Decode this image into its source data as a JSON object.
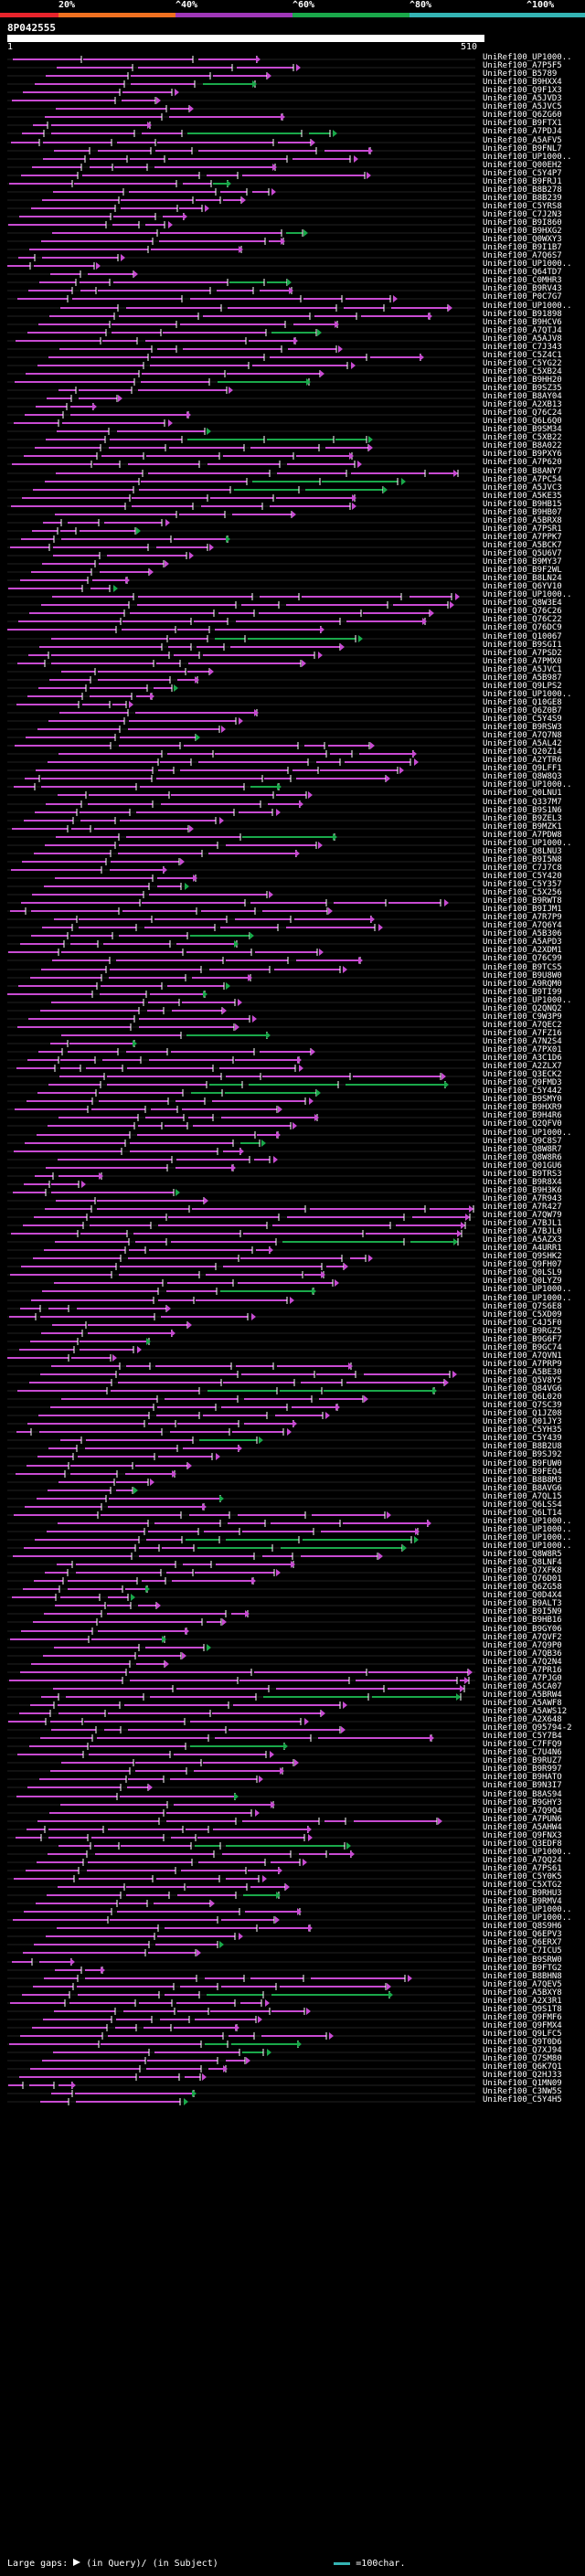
{
  "score_scale": {
    "labels": [
      "20%",
      "^40%",
      "^60%",
      "^80%",
      "^100%"
    ],
    "colors": [
      "#e8242c",
      "#f07020",
      "#9f37b8",
      "#1aa84a",
      "#34b4b4"
    ]
  },
  "query": {
    "id": "8P042555",
    "start": "1",
    "end": "510"
  },
  "hits": [
    "UniRef100_UP1000..",
    "UniRef100_A7P5F5",
    "UniRef100_B5789",
    "UniRef100_B9HXX4",
    "UniRef100_Q9F1X3",
    "UniRef100_A5JVD3",
    "UniRef100_A5JVC5",
    "UniRef100_Q6ZG60",
    "UniRef100_B9FTX1",
    "UniRef100_A7PDJ4",
    "UniRef100_A5AFV5",
    "UniRef100_B9FNL7",
    "UniRef100_UP1000..",
    "UniRef100_Q00EH2",
    "UniRef100_C5Y4P7",
    "UniRef100_B9FRJ1",
    "UniRef100_B8B278",
    "UniRef100_B8B239",
    "UniRef100_C5YRS8",
    "UniRef100_C7J2N3",
    "UniRef100_B9I860",
    "UniRef100_B9HXG2",
    "UniRef100_Q0WXY3",
    "UniRef100_B9I1B7",
    "UniRef100_A7Q6S7",
    "UniRef100_UP1000..",
    "UniRef100_Q64TD7",
    "UniRef100_C0MHR3",
    "UniRef100_B9RV43",
    "UniRef100_P0C7G7",
    "UniRef100_UP1000..",
    "UniRef100_B91898",
    "UniRef100_B9HCV6",
    "UniRef100_A7QTJ4",
    "UniRef100_A5AJV8",
    "UniRef100_C7J343",
    "UniRef100_C5Z4C1",
    "UniRef100_C5YG22",
    "UniRef100_C5XB24",
    "UniRef100_B9HH20",
    "UniRef100_B9SZ35",
    "UniRef100_B8AY04",
    "UniRef100_A2XB13",
    "UniRef100_Q76C24",
    "UniRef100_Q6L6Q0",
    "UniRef100_B9SM34",
    "UniRef100_C5XB22",
    "UniRef100_B8A022",
    "UniRef100_B9PXY6",
    "UniRef100_A7P620",
    "UniRef100_B8ANY7",
    "UniRef100_A7PC54",
    "UniRef100_A5JVC3",
    "UniRef100_A5KE35",
    "UniRef100_B9HB15",
    "UniRef100_B9HB07",
    "UniRef100_A5BRX8",
    "UniRef100_A7PSR1",
    "UniRef100_A7PPK7",
    "UniRef100_A5BCK7",
    "UniRef100_Q5U6V7",
    "UniRef100_B9MY37",
    "UniRef100_B9F2WL",
    "UniRef100_B8LN24",
    "UniRef100_Q6YV10",
    "UniRef100_UP1000..",
    "UniRef100_Q8W3E4",
    "UniRef100_Q76C26",
    "UniRef100_Q76C22",
    "UniRef100_Q76DC9",
    "UniRef100_Q10067",
    "UniRef100_B9SGI1",
    "UniRef100_A7PSD2",
    "UniRef100_A7PMX0",
    "UniRef100_A5JVC1",
    "UniRef100_A5B987",
    "UniRef100_Q9LPS2",
    "UniRef100_UP1000..",
    "UniRef100_Q10GE8",
    "UniRef100_Q6Z0B7",
    "UniRef100_C5Y4S9",
    "UniRef100_B9RSW3",
    "UniRef100_A7Q7N8",
    "UniRef100_A5AL42",
    "UniRef100_Q20Z14",
    "UniRef100_A2YTR6",
    "UniRef100_Q9LFF1",
    "UniRef100_Q8W8Q3",
    "UniRef100_UP1000..",
    "UniRef100_Q0LNU1",
    "UniRef100_Q337M7",
    "UniRef100_B9S1N6",
    "UniRef100_B9ZEL3",
    "UniRef100_B9MZK1",
    "UniRef100_A7PDW8",
    "UniRef100_UP1000..",
    "UniRef100_Q8LNU3",
    "UniRef100_B9I5N8",
    "UniRef100_C7J7C8",
    "UniRef100_C5Y420",
    "UniRef100_C5Y357",
    "UniRef100_C5X256",
    "UniRef100_B9RWT8",
    "UniRef100_B9IJM1",
    "UniRef100_A7R7P9",
    "UniRef100_A7Q6Y4",
    "UniRef100_A5B306",
    "UniRef100_A5APD3",
    "UniRef100_A2XDM1",
    "UniRef100_Q76C99",
    "UniRef100_B9TCS5",
    "UniRef100_B9U8W0",
    "UniRef100_A9RQM0",
    "UniRef100_B9TI99",
    "UniRef100_UP1000..",
    "UniRef100_Q2QNQ2",
    "UniRef100_C9W3P9",
    "UniRef100_A7QEC2",
    "UniRef100_A7FZ16",
    "UniRef100_A7N2S4",
    "UniRef100_A7PX01",
    "UniRef100_A3C1D6",
    "UniRef100_A2ZLX7",
    "UniRef100_Q3ECK2",
    "UniRef100_Q9FMD3",
    "UniRef100_C5Y442",
    "UniRef100_B9SMY0",
    "UniRef100_B9HXR9",
    "UniRef100_B9H4R6",
    "UniRef100_Q2QFV0",
    "UniRef100_UP1000..",
    "UniRef100_Q9C8S7",
    "UniRef100_Q8W8R7",
    "UniRef100_Q8W8R6",
    "UniRef100_Q01GU6",
    "UniRef100_B9TRS3",
    "UniRef100_B9R8X4",
    "UniRef100_B9H3K6",
    "UniRef100_A7R943",
    "UniRef100_A7R427",
    "UniRef100_A7QW79",
    "UniRef100_A7BJL1",
    "UniRef100_A7BJL0",
    "UniRef100_A5AZX3",
    "UniRef100_A4URR1",
    "UniRef100_Q9SHK2",
    "UniRef100_Q9FH07",
    "UniRef100_Q0LSL9",
    "UniRef100_Q0LYZ9",
    "UniRef100_UP1000..",
    "UniRef100_UP1000..",
    "UniRef100_Q7S6E8",
    "UniRef100_C5XD09",
    "UniRef100_C4J5F0",
    "UniRef100_B9RGZ5",
    "UniRef100_B9G6F7",
    "UniRef100_B9GC74",
    "UniRef100_A7QVN1",
    "UniRef100_A7PRP9",
    "UniRef100_A5BE30",
    "UniRef100_Q5V8Y5",
    "UniRef100_Q84VG6",
    "UniRef100_Q6L020",
    "UniRef100_Q7SC39",
    "UniRef100_Q1JZ08",
    "UniRef100_Q01JY3",
    "UniRef100_C5YH35",
    "UniRef100_C5Y439",
    "UniRef100_B8B2U8",
    "UniRef100_B9SJ92",
    "UniRef100_B9FUW0",
    "UniRef100_B9FEQ4",
    "UniRef100_B8B8M3",
    "UniRef100_B8AVG6",
    "UniRef100_A7QL15",
    "UniRef100_Q6LSS4",
    "UniRef100_Q6LT14",
    "UniRef100_UP1000..",
    "UniRef100_UP1000..",
    "UniRef100_UP1000..",
    "UniRef100_UP1000..",
    "UniRef100_Q8W8R5",
    "UniRef100_Q8LNF4",
    "UniRef100_Q7XFK8",
    "UniRef100_Q76D01",
    "UniRef100_Q6ZG58",
    "UniRef100_Q0D4X4",
    "UniRef100_B9ALT3",
    "UniRef100_B9I5N9",
    "UniRef100_B9HB16",
    "UniRef100_B9GY06",
    "UniRef100_A7QVF2",
    "UniRef100_A7Q9P0",
    "UniRef100_A7QB36",
    "UniRef100_A7Q2N4",
    "UniRef100_A7PR16",
    "UniRef100_A7PJG0",
    "UniRef100_A5CA07",
    "UniRef100_A5BRW4",
    "UniRef100_A5AWF8",
    "UniRef100_A5AWS12",
    "UniRef100_A2X648",
    "UniRef100_Q95794-2",
    "UniRef100_C5Y7B4",
    "UniRef100_C7FFQ9",
    "UniRef100_C7U4N6",
    "UniRef100_B9RUZ7",
    "UniRef100_B9R997",
    "UniRef100_B9HATO",
    "UniRef100_B9N3I7",
    "UniRef100_B8AS94",
    "UniRef100_B9GHY3",
    "UniRef100_A7Q9Q4",
    "UniRef100_A7PUN6",
    "UniRef100_A5AHW4",
    "UniRef100_Q9FNX3",
    "UniRef100_Q3EDF8",
    "UniRef100_UP1000..",
    "UniRef100_A7QQ24",
    "UniRef100_A7PS61",
    "UniRef100_C5Y0K5",
    "UniRef100_C5XTG2",
    "UniRef100_B9RHU3",
    "UniRef100_B9RMV4",
    "UniRef100_UP1000..",
    "UniRef100_UP1000..",
    "UniRef100_Q8S9H6",
    "UniRef100_Q6EPV3",
    "UniRef100_Q6ERX7",
    "UniRef100_C7ICU5",
    "UniRef100_B9SRW0",
    "UniRef100_B9FTG2",
    "UniRef100_B8BHN8",
    "UniRef100_A7QEV5",
    "UniRef100_A5BXY8",
    "UniRef100_A2X3R1",
    "UniRef100_Q9S1T8",
    "UniRef100_Q9FMF6",
    "UniRef100_Q9FMX4",
    "UniRef100_Q9LFC5",
    "UniRef100_Q9T0D6",
    "UniRef100_Q7XJ94",
    "UniRef100_Q7SM80",
    "UniRef100_Q6K7Q1",
    "UniRef100_Q2HJ33",
    "UniRef100_Q1MN09",
    "UniRef100_C3NW5S",
    "UniRef100_C5Y4H5"
  ],
  "legend": {
    "text": "Large gaps:",
    "query_gap": "(in Query)/",
    "subject_gap": "(in Subject)",
    "scale_text": "=100char."
  }
}
